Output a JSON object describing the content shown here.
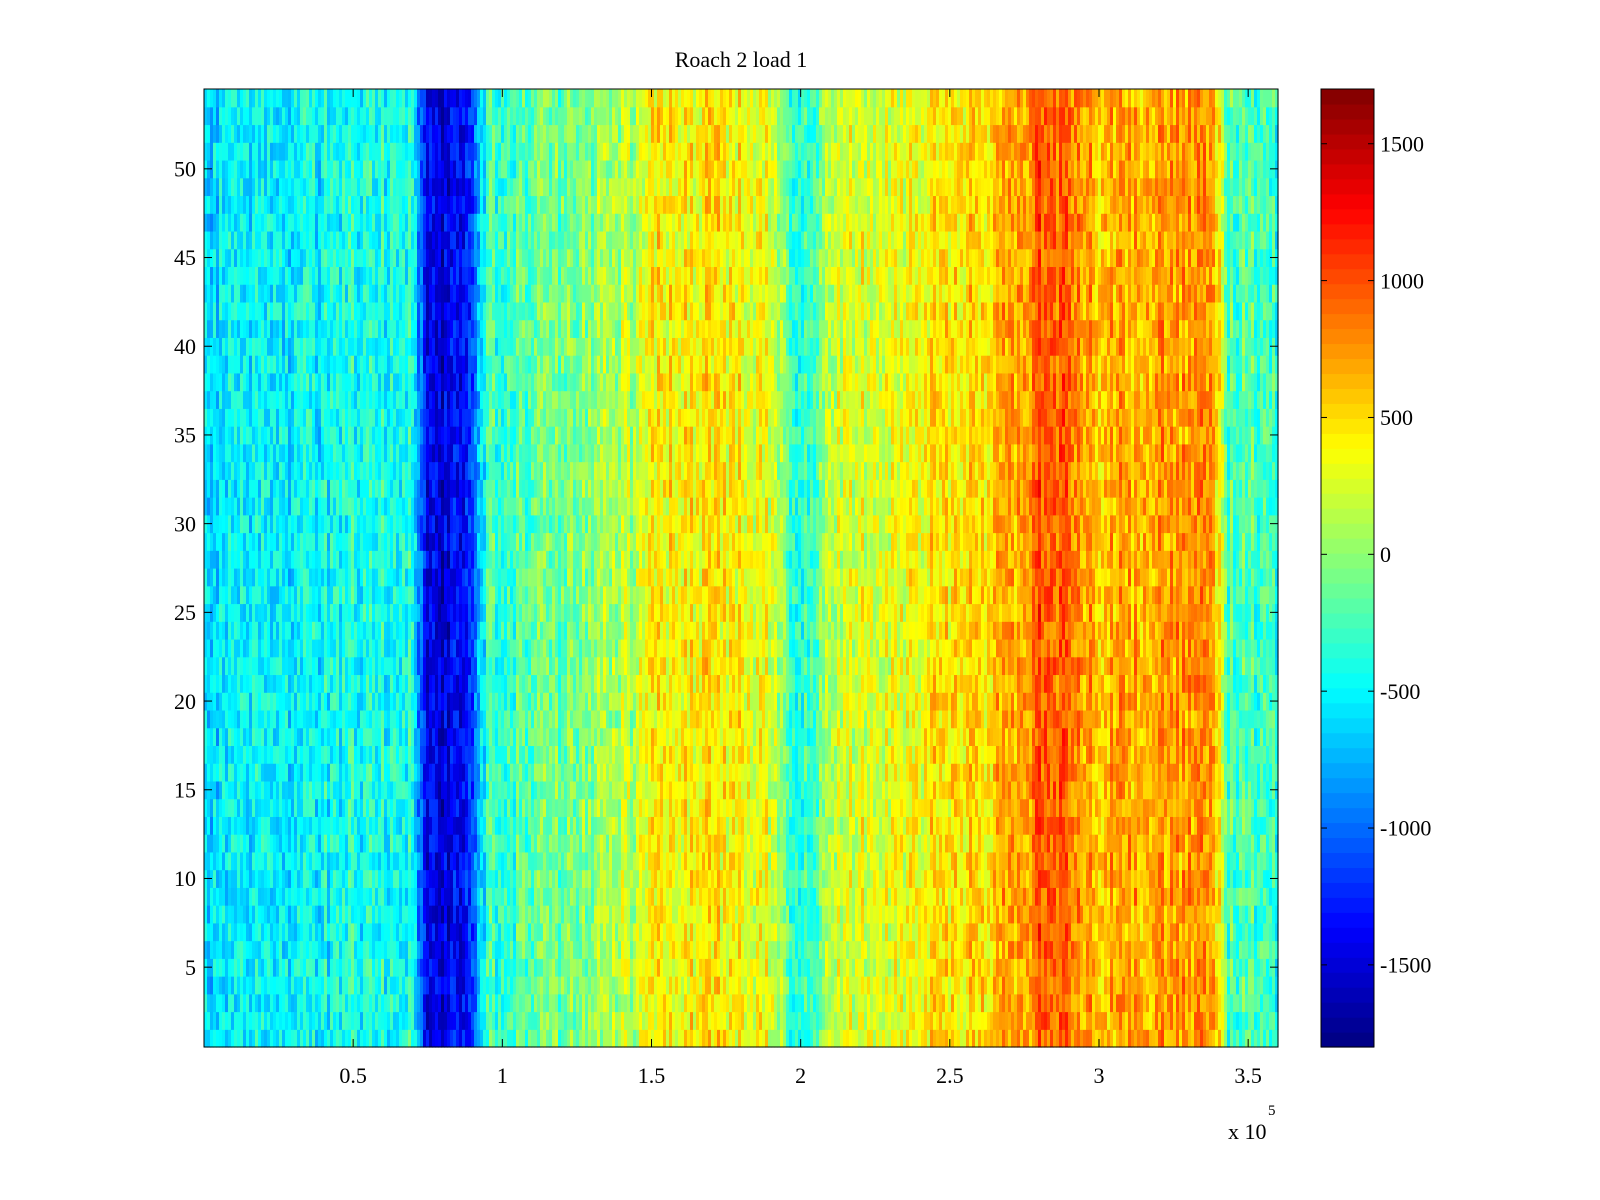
{
  "chart_data": {
    "type": "heatmap",
    "title": "Roach 2 load 1",
    "xlabel": "",
    "ylabel": "",
    "xlim": [
      0,
      360000
    ],
    "ylim": [
      0.5,
      54.5
    ],
    "x_ticks": [
      50000,
      100000,
      150000,
      200000,
      250000,
      300000,
      350000
    ],
    "x_tick_labels": [
      "0.5",
      "1",
      "1.5",
      "2",
      "2.5",
      "3",
      "3.5"
    ],
    "x_exponent_label": {
      "base": "x 10",
      "exp": "5"
    },
    "y_ticks": [
      5,
      10,
      15,
      20,
      25,
      30,
      35,
      40,
      45,
      50
    ],
    "y_tick_labels": [
      "5",
      "10",
      "15",
      "20",
      "25",
      "30",
      "35",
      "40",
      "45",
      "50"
    ],
    "rows": 54,
    "colormap": "jet",
    "clim": [
      -1800,
      1700
    ],
    "colorbar": {
      "ticks": [
        -1500,
        -1000,
        -500,
        0,
        500,
        1000,
        1500
      ],
      "tick_labels": [
        "-1500",
        "-1000",
        "-500",
        "0",
        "500",
        "1000",
        "1500"
      ]
    },
    "column_profile": {
      "x": [
        0,
        20000,
        40000,
        60000,
        70000,
        72000,
        75000,
        85000,
        90000,
        92000,
        95000,
        110000,
        130000,
        145000,
        150000,
        170000,
        190000,
        196000,
        200000,
        204000,
        210000,
        240000,
        260000,
        272000,
        280000,
        290000,
        300000,
        320000,
        335000,
        341000,
        343000,
        360000
      ],
      "mean": [
        -600,
        -550,
        -450,
        -400,
        -400,
        -900,
        -1400,
        -1450,
        -1300,
        -800,
        -300,
        -200,
        0,
        150,
        400,
        450,
        300,
        -200,
        -400,
        -200,
        200,
        400,
        500,
        700,
        950,
        850,
        650,
        700,
        750,
        450,
        -200,
        -300
      ]
    },
    "noise_amplitude": 250,
    "grid": false
  }
}
